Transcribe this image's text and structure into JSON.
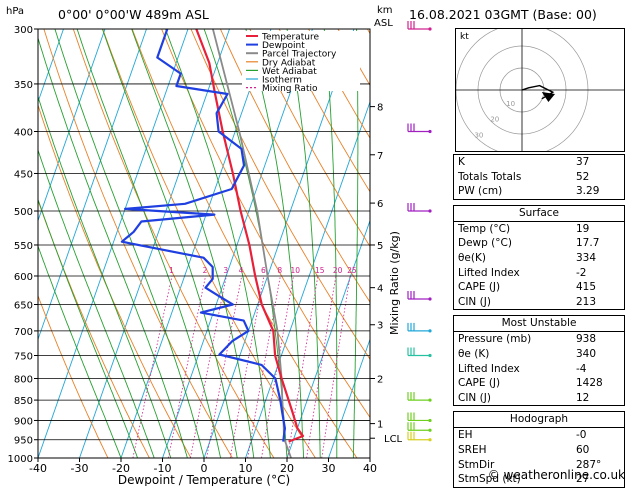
{
  "header": {
    "location": "0°00'  0°00'W  489m  ASL",
    "datetime": "16.08.2021  03GMT  (Base: 00)",
    "hpa_label": "hPa",
    "km_label": "km",
    "asl_label": "ASL"
  },
  "colors": {
    "temperature": "#e8203a",
    "dewpoint": "#1f3fe0",
    "parcel": "#8a8a8a",
    "dry_adiabat": "#e8822a",
    "wet_adiabat": "#27a030",
    "isotherm": "#22a7d8",
    "mixing_ratio": "#d1208f"
  },
  "chart_data": {
    "type": "skew-t",
    "xlabel": "Dewpoint / Temperature (°C)",
    "ylabel_right": "Mixing Ratio (g/kg)",
    "xlim": [
      -40,
      40
    ],
    "pressure_range_hPa": [
      1000,
      300
    ],
    "x_ticks": [
      -40,
      -30,
      -20,
      -10,
      0,
      10,
      20,
      30,
      40
    ],
    "p_ticks": [
      300,
      350,
      400,
      450,
      500,
      550,
      600,
      650,
      700,
      750,
      800,
      850,
      900,
      950,
      1000
    ],
    "km_ticks": [
      {
        "km": "8",
        "p": 373
      },
      {
        "km": "7",
        "p": 427
      },
      {
        "km": "6",
        "p": 489
      },
      {
        "km": "5",
        "p": 550
      },
      {
        "km": "4",
        "p": 620
      },
      {
        "km": "3",
        "p": 688
      },
      {
        "km": "2",
        "p": 800
      },
      {
        "km": "1",
        "p": 908
      }
    ],
    "lcl": {
      "label": "LCL",
      "p": 946
    },
    "mixing_ratio_labels": [
      "1",
      "2",
      "3",
      "4",
      "6",
      "8",
      "10",
      "15",
      "20",
      "25"
    ],
    "legend": [
      "Temperature",
      "Dewpoint",
      "Parcel Trajectory",
      "Dry Adiabat",
      "Wet Adiabat",
      "Isotherm",
      "Mixing Ratio"
    ],
    "temperature": [
      {
        "p": 955,
        "t": 19
      },
      {
        "p": 940,
        "t": 22
      },
      {
        "p": 920,
        "t": 20
      },
      {
        "p": 880,
        "t": 17.5
      },
      {
        "p": 850,
        "t": 15.5
      },
      {
        "p": 800,
        "t": 12
      },
      {
        "p": 750,
        "t": 8.5
      },
      {
        "p": 700,
        "t": 6
      },
      {
        "p": 650,
        "t": 1
      },
      {
        "p": 600,
        "t": -3
      },
      {
        "p": 550,
        "t": -7
      },
      {
        "p": 500,
        "t": -12
      },
      {
        "p": 450,
        "t": -17
      },
      {
        "p": 400,
        "t": -23
      },
      {
        "p": 360,
        "t": -28
      },
      {
        "p": 330,
        "t": -32
      },
      {
        "p": 300,
        "t": -38
      }
    ],
    "dewpoint": [
      {
        "p": 955,
        "t": 17.7
      },
      {
        "p": 920,
        "t": 17
      },
      {
        "p": 880,
        "t": 15
      },
      {
        "p": 850,
        "t": 13.5
      },
      {
        "p": 800,
        "t": 10.5
      },
      {
        "p": 770,
        "t": 6
      },
      {
        "p": 748,
        "t": -5
      },
      {
        "p": 720,
        "t": -3
      },
      {
        "p": 700,
        "t": 0
      },
      {
        "p": 680,
        "t": -2
      },
      {
        "p": 665,
        "t": -13
      },
      {
        "p": 650,
        "t": -6
      },
      {
        "p": 635,
        "t": -10
      },
      {
        "p": 620,
        "t": -14
      },
      {
        "p": 605,
        "t": -13
      },
      {
        "p": 585,
        "t": -14
      },
      {
        "p": 570,
        "t": -17
      },
      {
        "p": 545,
        "t": -38
      },
      {
        "p": 530,
        "t": -36
      },
      {
        "p": 515,
        "t": -35
      },
      {
        "p": 505,
        "t": -18
      },
      {
        "p": 497,
        "t": -40
      },
      {
        "p": 490,
        "t": -26
      },
      {
        "p": 470,
        "t": -16
      },
      {
        "p": 440,
        "t": -15
      },
      {
        "p": 420,
        "t": -17
      },
      {
        "p": 400,
        "t": -24
      },
      {
        "p": 380,
        "t": -26
      },
      {
        "p": 360,
        "t": -25
      },
      {
        "p": 352,
        "t": -38
      },
      {
        "p": 340,
        "t": -38
      },
      {
        "p": 325,
        "t": -45
      },
      {
        "p": 300,
        "t": -45
      }
    ],
    "parcel": [
      {
        "p": 1000,
        "t": 21
      },
      {
        "p": 946,
        "t": 17.6
      },
      {
        "p": 900,
        "t": 16
      },
      {
        "p": 850,
        "t": 14
      },
      {
        "p": 800,
        "t": 12
      },
      {
        "p": 700,
        "t": 7
      },
      {
        "p": 600,
        "t": 0
      },
      {
        "p": 500,
        "t": -8
      },
      {
        "p": 400,
        "t": -19
      },
      {
        "p": 300,
        "t": -34
      }
    ]
  },
  "hodograph": {
    "label": "kt",
    "ring_labels": [
      "10",
      "20",
      "30"
    ],
    "trace": [
      {
        "u": 0,
        "v": 0
      },
      {
        "u": 3,
        "v": 1
      },
      {
        "u": 8,
        "v": 2
      },
      {
        "u": 14,
        "v": -1
      },
      {
        "u": 9,
        "v": -4
      }
    ]
  },
  "indices": {
    "basic": [
      {
        "label": "K",
        "value": "37"
      },
      {
        "label": "Totals Totals",
        "value": "52"
      },
      {
        "label": "PW (cm)",
        "value": "3.29"
      }
    ],
    "surface": {
      "title": "Surface",
      "rows": [
        {
          "label": "Temp (°C)",
          "value": "19"
        },
        {
          "label": "Dewp (°C)",
          "value": "17.7"
        },
        {
          "label": "θe(K)",
          "value": "334"
        },
        {
          "label": "Lifted Index",
          "value": "-2"
        },
        {
          "label": "CAPE (J)",
          "value": "415"
        },
        {
          "label": "CIN (J)",
          "value": "213"
        }
      ]
    },
    "most_unstable": {
      "title": "Most Unstable",
      "rows": [
        {
          "label": "Pressure (mb)",
          "value": "938"
        },
        {
          "label": "θe (K)",
          "value": "340"
        },
        {
          "label": "Lifted Index",
          "value": "-4"
        },
        {
          "label": "CAPE (J)",
          "value": "1428"
        },
        {
          "label": "CIN (J)",
          "value": "12"
        }
      ]
    },
    "hodograph": {
      "title": "Hodograph",
      "rows": [
        {
          "label": "EH",
          "value": "-0"
        },
        {
          "label": "SREH",
          "value": "60"
        },
        {
          "label": "StmDir",
          "value": "287°"
        },
        {
          "label": "StmSpd (kt)",
          "value": "27"
        }
      ]
    }
  },
  "copyright": "© weatheronline.co.uk"
}
